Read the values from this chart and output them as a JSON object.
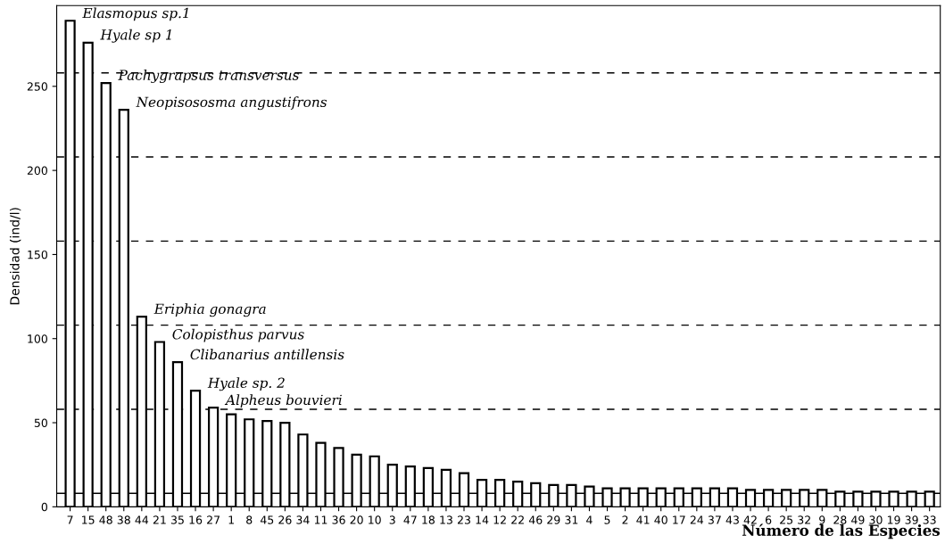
{
  "chart_data": {
    "type": "bar",
    "xlabel": "Número de las Especies",
    "ylabel": "Densidad (ind/l)",
    "categories": [
      "7",
      "15",
      "48",
      "38",
      "44",
      "21",
      "35",
      "16",
      "27",
      "1",
      "8",
      "45",
      "26",
      "34",
      "11",
      "36",
      "20",
      "10",
      "3",
      "47",
      "18",
      "13",
      "23",
      "14",
      "12",
      "22",
      "46",
      "29",
      "31",
      "4",
      "5",
      "2",
      "41",
      "40",
      "17",
      "24",
      "37",
      "43",
      "42",
      "6",
      "25",
      "32",
      "9",
      "28",
      "49",
      "30",
      "19",
      "39",
      "33"
    ],
    "values": [
      289,
      276,
      252,
      236,
      113,
      98,
      86,
      69,
      59,
      55,
      52,
      51,
      50,
      43,
      38,
      35,
      31,
      30,
      25,
      24,
      23,
      22,
      20,
      16,
      16,
      15,
      14,
      13,
      13,
      12,
      11,
      11,
      11,
      11,
      11,
      11,
      11,
      11,
      10,
      10,
      10,
      10,
      10,
      9,
      9,
      9,
      9,
      9,
      9
    ],
    "color": "#ffffff",
    "ylim": [
      0,
      298
    ],
    "yticks": [
      0,
      50,
      100,
      150,
      200,
      250
    ],
    "grid": false,
    "legend": false,
    "ref_lines": [
      {
        "axis": "y",
        "value": 8,
        "line_style": "solid",
        "color": "#000000"
      },
      {
        "axis": "y",
        "value": 58,
        "line_style": "dashed",
        "color": "#000000"
      },
      {
        "axis": "y",
        "value": 108,
        "line_style": "dashed",
        "color": "#000000"
      },
      {
        "axis": "y",
        "value": 158,
        "line_style": "dashed",
        "color": "#000000"
      },
      {
        "axis": "y",
        "value": 208,
        "line_style": "dashed",
        "color": "#000000"
      },
      {
        "axis": "y",
        "value": 258,
        "line_style": "dashed",
        "color": "#000000"
      }
    ],
    "annotations": [
      {
        "text": "Elasmopus sp.1",
        "x": "7",
        "y": 289
      },
      {
        "text": "Hyale sp 1",
        "x": "15",
        "y": 276
      },
      {
        "text": "Pachygrapsus transversus",
        "x": "48",
        "y": 252
      },
      {
        "text": "Neopisososma angustifrons",
        "x": "38",
        "y": 236
      },
      {
        "text": "Eriphia gonagra",
        "x": "44",
        "y": 113
      },
      {
        "text": "Colopisthus parvus",
        "x": "21",
        "y": 98
      },
      {
        "text": "Clibanarius antillensis",
        "x": "35",
        "y": 86
      },
      {
        "text": "Hyale sp. 2",
        "x": "16",
        "y": 69
      },
      {
        "text": "Alpheus bouvieri",
        "x": "27",
        "y": 59
      }
    ]
  }
}
